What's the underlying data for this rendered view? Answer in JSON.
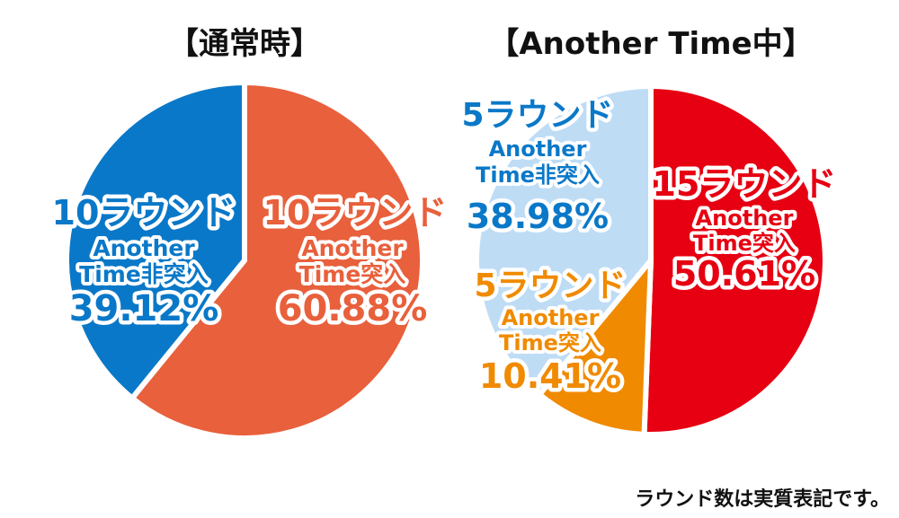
{
  "chart_data": [
    {
      "type": "pie",
      "title": "【通常時】",
      "slices": [
        {
          "line1": "10ラウンド",
          "line2": "Another",
          "line3": "Time突入",
          "value": 60.88,
          "value_label": "60.88%",
          "color": "#e8603c"
        },
        {
          "line1": "10ラウンド",
          "line2": "Another",
          "line3": "Time非突入",
          "value": 39.12,
          "value_label": "39.12%",
          "color": "#0a78c8"
        }
      ]
    },
    {
      "type": "pie",
      "title": "【Another Time中】",
      "slices": [
        {
          "line1": "15ラウンド",
          "line2": "Another",
          "line3": "Time突入",
          "value": 50.61,
          "value_label": "50.61%",
          "color": "#e60012"
        },
        {
          "line1": "5ラウンド",
          "line2": "Another",
          "line3": "Time突入",
          "value": 10.41,
          "value_label": "10.41%",
          "color": "#f08a00"
        },
        {
          "line1": "5ラウンド",
          "line2": "Another",
          "line3": "Time非突入",
          "value": 38.98,
          "value_label": "38.98%",
          "color": "#bfdcf5"
        }
      ]
    }
  ],
  "footnote": "ラウンド数は実質表記です。"
}
